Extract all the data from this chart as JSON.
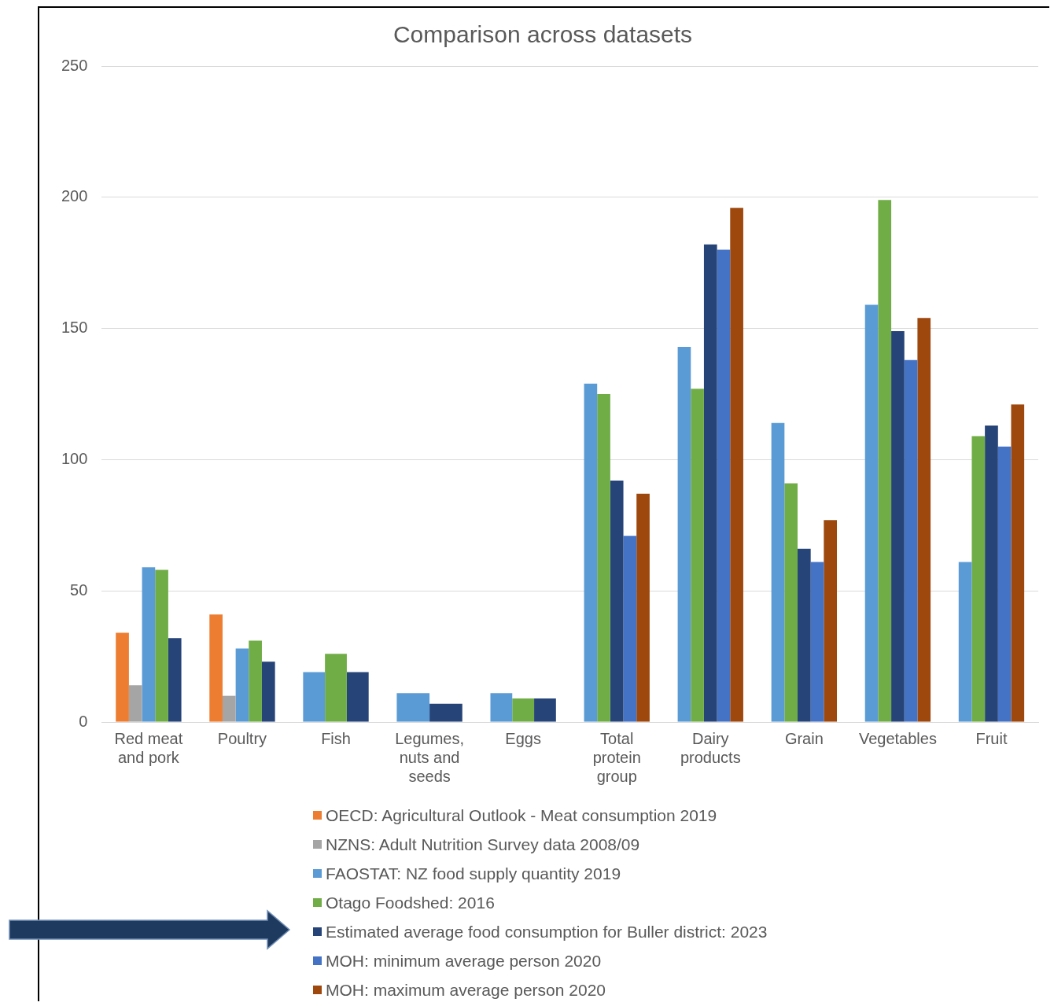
{
  "chart_data": {
    "type": "bar",
    "title": "Comparison across datasets",
    "categories": [
      "Red meat and pork",
      "Poultry",
      "Fish",
      "Legumes, nuts and seeds",
      "Eggs",
      "Total protein group",
      "Dairy products",
      "Grain",
      "Vegetables",
      "Fruit"
    ],
    "series": [
      {
        "name": "OECD: Agricultural Outlook - Meat consumption 2019",
        "color": "#ed7d31",
        "values": [
          34,
          41,
          null,
          null,
          null,
          null,
          null,
          null,
          null,
          null
        ]
      },
      {
        "name": "NZNS: Adult Nutrition Survey data  2008/09",
        "color": "#a5a5a5",
        "values": [
          14,
          10,
          null,
          null,
          null,
          null,
          null,
          null,
          null,
          null
        ]
      },
      {
        "name": "FAOSTAT: NZ food supply quantity 2019",
        "color": "#5b9bd5",
        "values": [
          59,
          28,
          19,
          11,
          11,
          129,
          143,
          114,
          159,
          61
        ]
      },
      {
        "name": "Otago Foodshed: 2016",
        "color": "#70ad47",
        "values": [
          58,
          31,
          26,
          null,
          9,
          125,
          127,
          91,
          199,
          109
        ]
      },
      {
        "name": "Estimated average food consumption for Buller district: 2023",
        "color": "#264478",
        "values": [
          32,
          23,
          19,
          7,
          9,
          92,
          182,
          66,
          149,
          113
        ]
      },
      {
        "name": "MOH: minimum average person 2020",
        "color": "#4472c4",
        "values": [
          null,
          null,
          null,
          null,
          null,
          71,
          180,
          61,
          138,
          105
        ]
      },
      {
        "name": "MOH: maximum average person 2020",
        "color": "#9e480e",
        "values": [
          null,
          null,
          null,
          null,
          null,
          87,
          196,
          77,
          154,
          121
        ]
      }
    ],
    "ylim": [
      0,
      250
    ],
    "yticks": [
      0,
      50,
      100,
      150,
      200,
      250
    ],
    "grid": "y",
    "legend": "bottom"
  }
}
